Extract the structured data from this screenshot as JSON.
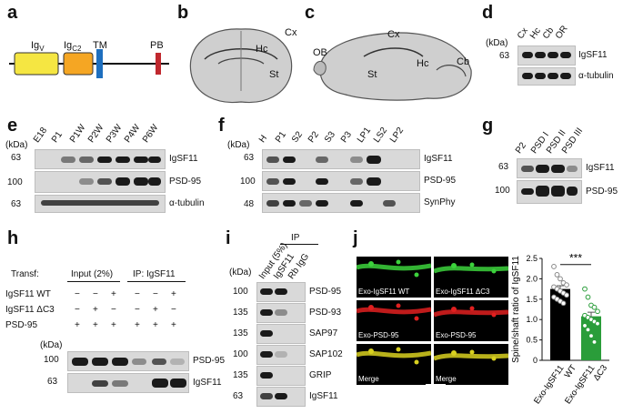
{
  "panels": {
    "a": {
      "letter": "a",
      "domains": [
        "Ig",
        "Ig",
        "TM",
        "PB"
      ],
      "domain_subs": [
        "V",
        "C2",
        "",
        ""
      ],
      "colors": {
        "igv": "#f5e642",
        "igc2": "#f5a623",
        "tm": "#1e6fbf",
        "pb": "#c0282e"
      }
    },
    "b": {
      "letter": "b",
      "regions": [
        "Cx",
        "Hc",
        "St"
      ]
    },
    "c": {
      "letter": "c",
      "regions": [
        "Cx",
        "OB",
        "St",
        "Hc",
        "Cb"
      ]
    },
    "d": {
      "letter": "d",
      "unit": "(kDa)",
      "lanes": [
        "Cx",
        "Hc",
        "Cb",
        "OR"
      ],
      "markers": [
        "63"
      ],
      "rows": [
        "IgSF11",
        "α-tubulin"
      ]
    },
    "e": {
      "letter": "e",
      "unit": "(kDa)",
      "lanes": [
        "E18",
        "P1",
        "P1W",
        "P2W",
        "P3W",
        "P4W",
        "P6W"
      ],
      "markers": [
        "63",
        "100",
        "63"
      ],
      "rows": [
        "IgSF11",
        "PSD-95",
        "α-tubulin"
      ]
    },
    "f": {
      "letter": "f",
      "unit": "(kDa)",
      "lanes": [
        "H",
        "P1",
        "S2",
        "P2",
        "S3",
        "P3",
        "LP1",
        "LS2",
        "LP2"
      ],
      "markers": [
        "63",
        "100",
        "48"
      ],
      "rows": [
        "IgSF11",
        "PSD-95",
        "SynPhy"
      ]
    },
    "g": {
      "letter": "g",
      "lanes": [
        "P2",
        "PSD I",
        "PSD II",
        "PSD III"
      ],
      "markers": [
        "63",
        "100"
      ],
      "rows": [
        "IgSF11",
        "PSD-95"
      ]
    },
    "h": {
      "letter": "h",
      "transf": "Transf:",
      "input": "Input (2%)",
      "ip": "IP: IgSF11",
      "conditions": [
        {
          "label": "IgSF11 WT",
          "signs": [
            "−",
            "−",
            "+",
            "−",
            "−",
            "+"
          ]
        },
        {
          "label": "IgSF11 ΔC3",
          "signs": [
            "−",
            "+",
            "−",
            "−",
            "+",
            "−"
          ]
        },
        {
          "label": "PSD-95",
          "signs": [
            "+",
            "+",
            "+",
            "+",
            "+",
            "+"
          ]
        }
      ],
      "unit": "(kDa)",
      "markers": [
        "100",
        "63"
      ],
      "rows": [
        "PSD-95",
        "IgSF11"
      ]
    },
    "i": {
      "letter": "i",
      "unit": "(kDa)",
      "ip": "IP",
      "lanes": [
        "Input (5%)",
        "IgSF11",
        "Rb IgG"
      ],
      "markers": [
        "100",
        "135",
        "135",
        "100",
        "135",
        "63"
      ],
      "rows": [
        "PSD-95",
        "PSD-93",
        "SAP97",
        "SAP102",
        "GRIP",
        "IgSF11"
      ]
    },
    "j": {
      "letter": "j",
      "images": [
        [
          "Exo-IgSF11 WT",
          "Exo-IgSF11 ΔC3"
        ],
        [
          "Exo-PSD-95",
          "Exo-PSD-95"
        ],
        [
          "Merge",
          "Merge"
        ]
      ],
      "colors": {
        "green": "#3cd23c",
        "red": "#e02020",
        "merge": "#d8d020"
      }
    }
  },
  "chart_data": {
    "type": "bar",
    "categories": [
      "Exo-IgSF11 WT",
      "Exo-IgSF11 ΔC3"
    ],
    "values": [
      1.75,
      1.08
    ],
    "errors": [
      0.08,
      0.1
    ],
    "points": [
      [
        2.3,
        2.1,
        2.0,
        1.9,
        1.85,
        1.8,
        1.75,
        1.7,
        1.65,
        1.6,
        1.55,
        1.5,
        1.45,
        1.4
      ],
      [
        1.75,
        1.55,
        1.35,
        1.3,
        1.2,
        1.1,
        1.05,
        1.0,
        0.95,
        0.9,
        0.85,
        0.75,
        0.6,
        0.45
      ]
    ],
    "colors": [
      "#000000",
      "#2a9d3a"
    ],
    "ylabel": "Spine/shaft ratio of IgSF11",
    "ylim": [
      0,
      2.5
    ],
    "yticks": [
      "0",
      "0.5",
      "1.0",
      "1.5",
      "2.0",
      "2.5"
    ],
    "significance": "***",
    "xlabels": [
      [
        "Exo-IgSF11",
        "WT"
      ],
      [
        "Exo-IgSF11",
        "ΔC3"
      ]
    ]
  }
}
